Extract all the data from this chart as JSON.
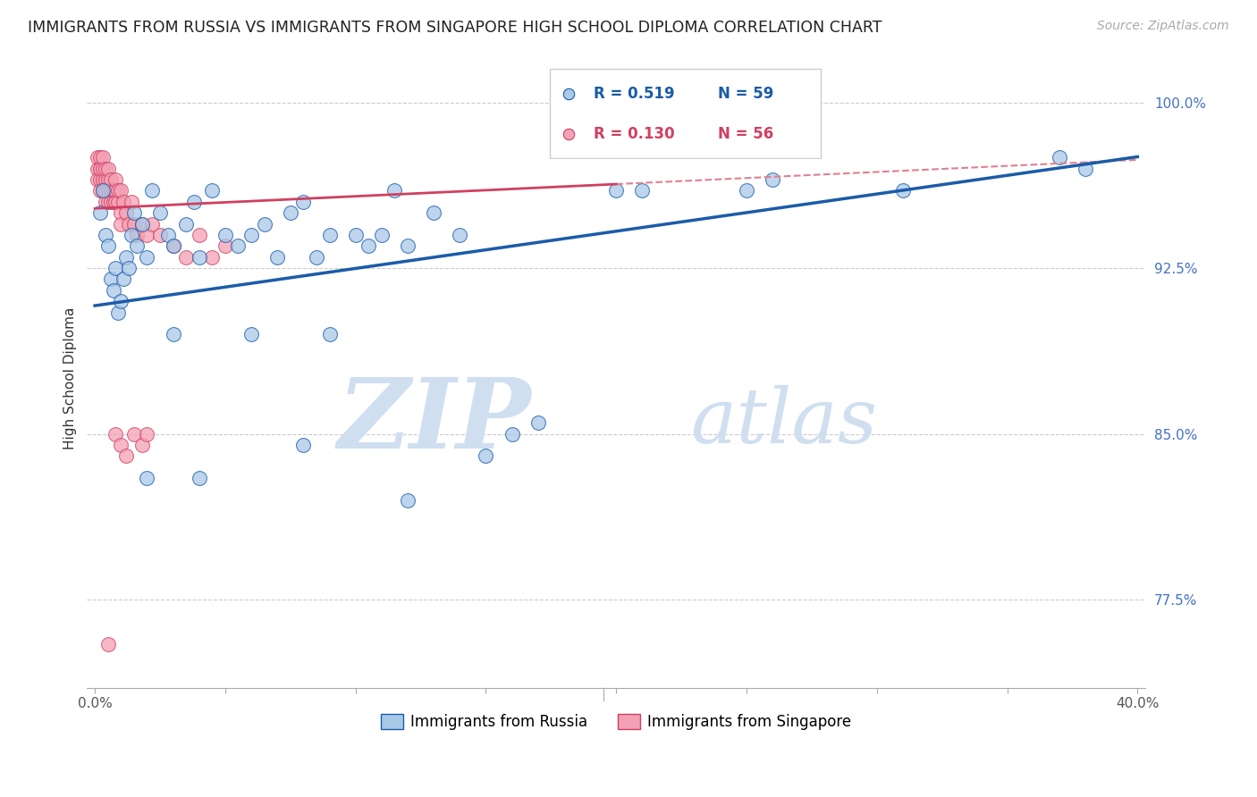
{
  "title": "IMMIGRANTS FROM RUSSIA VS IMMIGRANTS FROM SINGAPORE HIGH SCHOOL DIPLOMA CORRELATION CHART",
  "source": "Source: ZipAtlas.com",
  "ylabel": "High School Diploma",
  "x_min": 0.0,
  "x_max": 0.4,
  "y_min": 0.735,
  "y_max": 1.015,
  "y_ticks": [
    0.775,
    0.85,
    0.925,
    1.0
  ],
  "y_tick_labels": [
    "77.5%",
    "85.0%",
    "92.5%",
    "100.0%"
  ],
  "x_ticks": [
    0.0,
    0.05,
    0.1,
    0.15,
    0.2,
    0.25,
    0.3,
    0.35,
    0.4
  ],
  "legend_russia": "Immigrants from Russia",
  "legend_singapore": "Immigrants from Singapore",
  "R_russia": 0.519,
  "N_russia": 59,
  "R_singapore": 0.13,
  "N_singapore": 56,
  "color_russia": "#a8c8e8",
  "color_singapore": "#f4a0b5",
  "line_color_russia": "#1a5ca8",
  "line_color_singapore": "#d04060",
  "line_color_singapore_dash": "#e08090",
  "watermark_zip": "ZIP",
  "watermark_atlas": "atlas",
  "watermark_color": "#d0dff0",
  "bg_color": "#ffffff"
}
